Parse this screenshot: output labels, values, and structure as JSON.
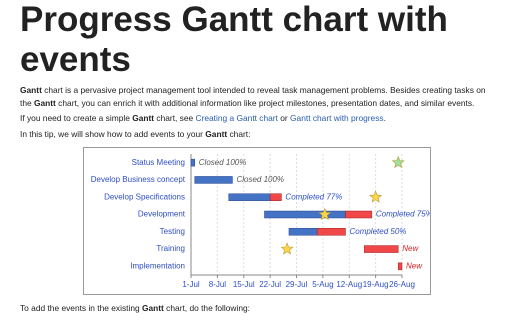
{
  "header": {
    "title": "Progress Gantt chart with events"
  },
  "paragraphs": [
    [
      "Gantt",
      " chart is a pervasive project management tool intended to reveal task management problems. Besides creating tasks on the ",
      "Gantt",
      " chart, you can enrich it with additional information like project milestones, presentation dates, and similar events."
    ],
    [
      "If you need to create a simple ",
      "Gantt",
      " chart, see ",
      "Creating a Gantt chart",
      " or ",
      "Gantt chart with progress",
      "."
    ],
    [
      "In this tip, we will show how to add events to your ",
      "Gantt",
      " chart:"
    ],
    [
      "To add the events in the existing ",
      "Gantt",
      " chart, do the following:"
    ]
  ],
  "chart_data": {
    "type": "gantt",
    "categories": [
      "Status Meeting",
      "Develop Business concept",
      "Develop Specifications",
      "Development",
      "Testing",
      "Training",
      "Implementation"
    ],
    "start": [
      0,
      1,
      10,
      19.5,
      26,
      46,
      55
    ],
    "complete": [
      1,
      11,
      21,
      41,
      33.5,
      46,
      55
    ],
    "end": [
      1,
      11,
      24,
      48,
      41,
      55,
      56
    ],
    "bar_labels": [
      "Closed 100%",
      "Closed 100%",
      "Completed 77%",
      "Completed 75%",
      "Completed 50%",
      "New",
      "New"
    ],
    "label_colors": [
      "#555555",
      "#555555",
      "#2f4fc4",
      "#2f4fc4",
      "#2f4fc4",
      "#e02020",
      "#e02020"
    ],
    "done_color": "#4472c4",
    "remaining_color": "#f04848",
    "events": [
      {
        "task": 0,
        "day": 55,
        "color": "#9ee09e"
      },
      {
        "task": 2,
        "day": 49,
        "color": "#ffd54a"
      },
      {
        "task": 3,
        "day": 35.5,
        "color": "#ffd54a"
      },
      {
        "task": 5,
        "day": 25.5,
        "color": "#ffd54a"
      }
    ],
    "xlim": [
      0,
      56
    ],
    "xticks": [
      {
        "value": 0,
        "label": "1-Jul"
      },
      {
        "value": 7,
        "label": "8-Jul"
      },
      {
        "value": 14,
        "label": "15-Jul"
      },
      {
        "value": 21,
        "label": "22-Jul"
      },
      {
        "value": 28,
        "label": "29-Jul"
      },
      {
        "value": 35,
        "label": "5-Aug"
      },
      {
        "value": 42,
        "label": "12-Aug"
      },
      {
        "value": 49,
        "label": "19-Aug"
      },
      {
        "value": 56,
        "label": "26-Aug"
      }
    ],
    "grid": true
  }
}
